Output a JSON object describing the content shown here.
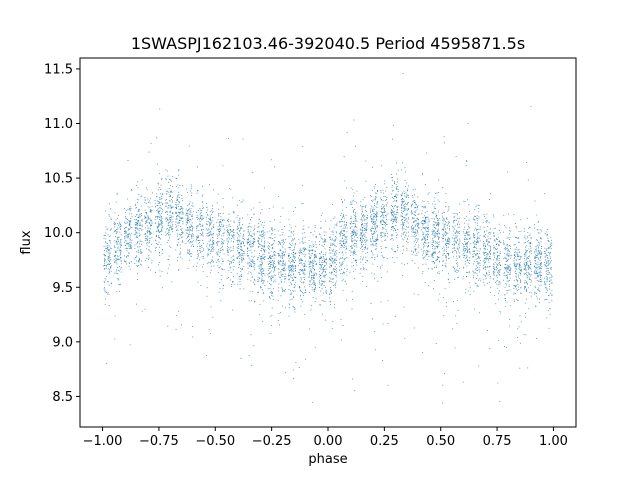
{
  "chart_data": {
    "type": "scatter",
    "title": "1SWASPJ162103.46-392040.5 Period 4595871.5s",
    "xlabel": "phase",
    "ylabel": "flux",
    "xlim": [
      -1.1,
      1.1
    ],
    "ylim": [
      8.22,
      11.6
    ],
    "xticks": [
      -1.0,
      -0.75,
      -0.5,
      -0.25,
      0.0,
      0.25,
      0.5,
      0.75,
      1.0
    ],
    "xtick_labels": [
      "−1.00",
      "−0.75",
      "−0.50",
      "−0.25",
      "0.00",
      "0.25",
      "0.50",
      "0.75",
      "1.00"
    ],
    "yticks": [
      8.5,
      9.0,
      9.5,
      10.0,
      10.5,
      11.0,
      11.5
    ],
    "ytick_labels": [
      "8.5",
      "9.0",
      "9.5",
      "10.0",
      "10.5",
      "11.0",
      "11.5"
    ],
    "grid": false,
    "legend": "none",
    "marker_color": "#1f77b4",
    "series": [
      {
        "x": [
          -1.0,
          -0.95,
          -0.9,
          -0.85,
          -0.8,
          -0.75,
          -0.7,
          -0.65,
          -0.6,
          -0.55,
          -0.5,
          -0.45,
          -0.4,
          -0.35,
          -0.3,
          -0.25,
          -0.2,
          -0.15,
          -0.1,
          -0.05,
          0.0,
          0.05,
          0.1,
          0.15,
          0.2,
          0.25,
          0.3,
          0.35,
          0.4,
          0.45,
          0.5,
          0.55,
          0.6,
          0.65,
          0.7,
          0.75,
          0.8,
          0.85,
          0.9,
          0.95,
          1.0
        ],
        "y": [
          9.7,
          9.85,
          9.98,
          10.0,
          10.05,
          10.12,
          10.2,
          10.15,
          10.05,
          10.0,
          9.95,
          9.9,
          9.88,
          9.85,
          9.82,
          9.75,
          9.72,
          9.7,
          9.72,
          9.7,
          9.7,
          9.85,
          9.98,
          10.0,
          10.05,
          10.12,
          10.2,
          10.15,
          10.05,
          10.0,
          9.95,
          9.9,
          9.88,
          9.85,
          9.82,
          9.75,
          9.72,
          9.7,
          9.72,
          9.7,
          9.7
        ]
      }
    ]
  }
}
